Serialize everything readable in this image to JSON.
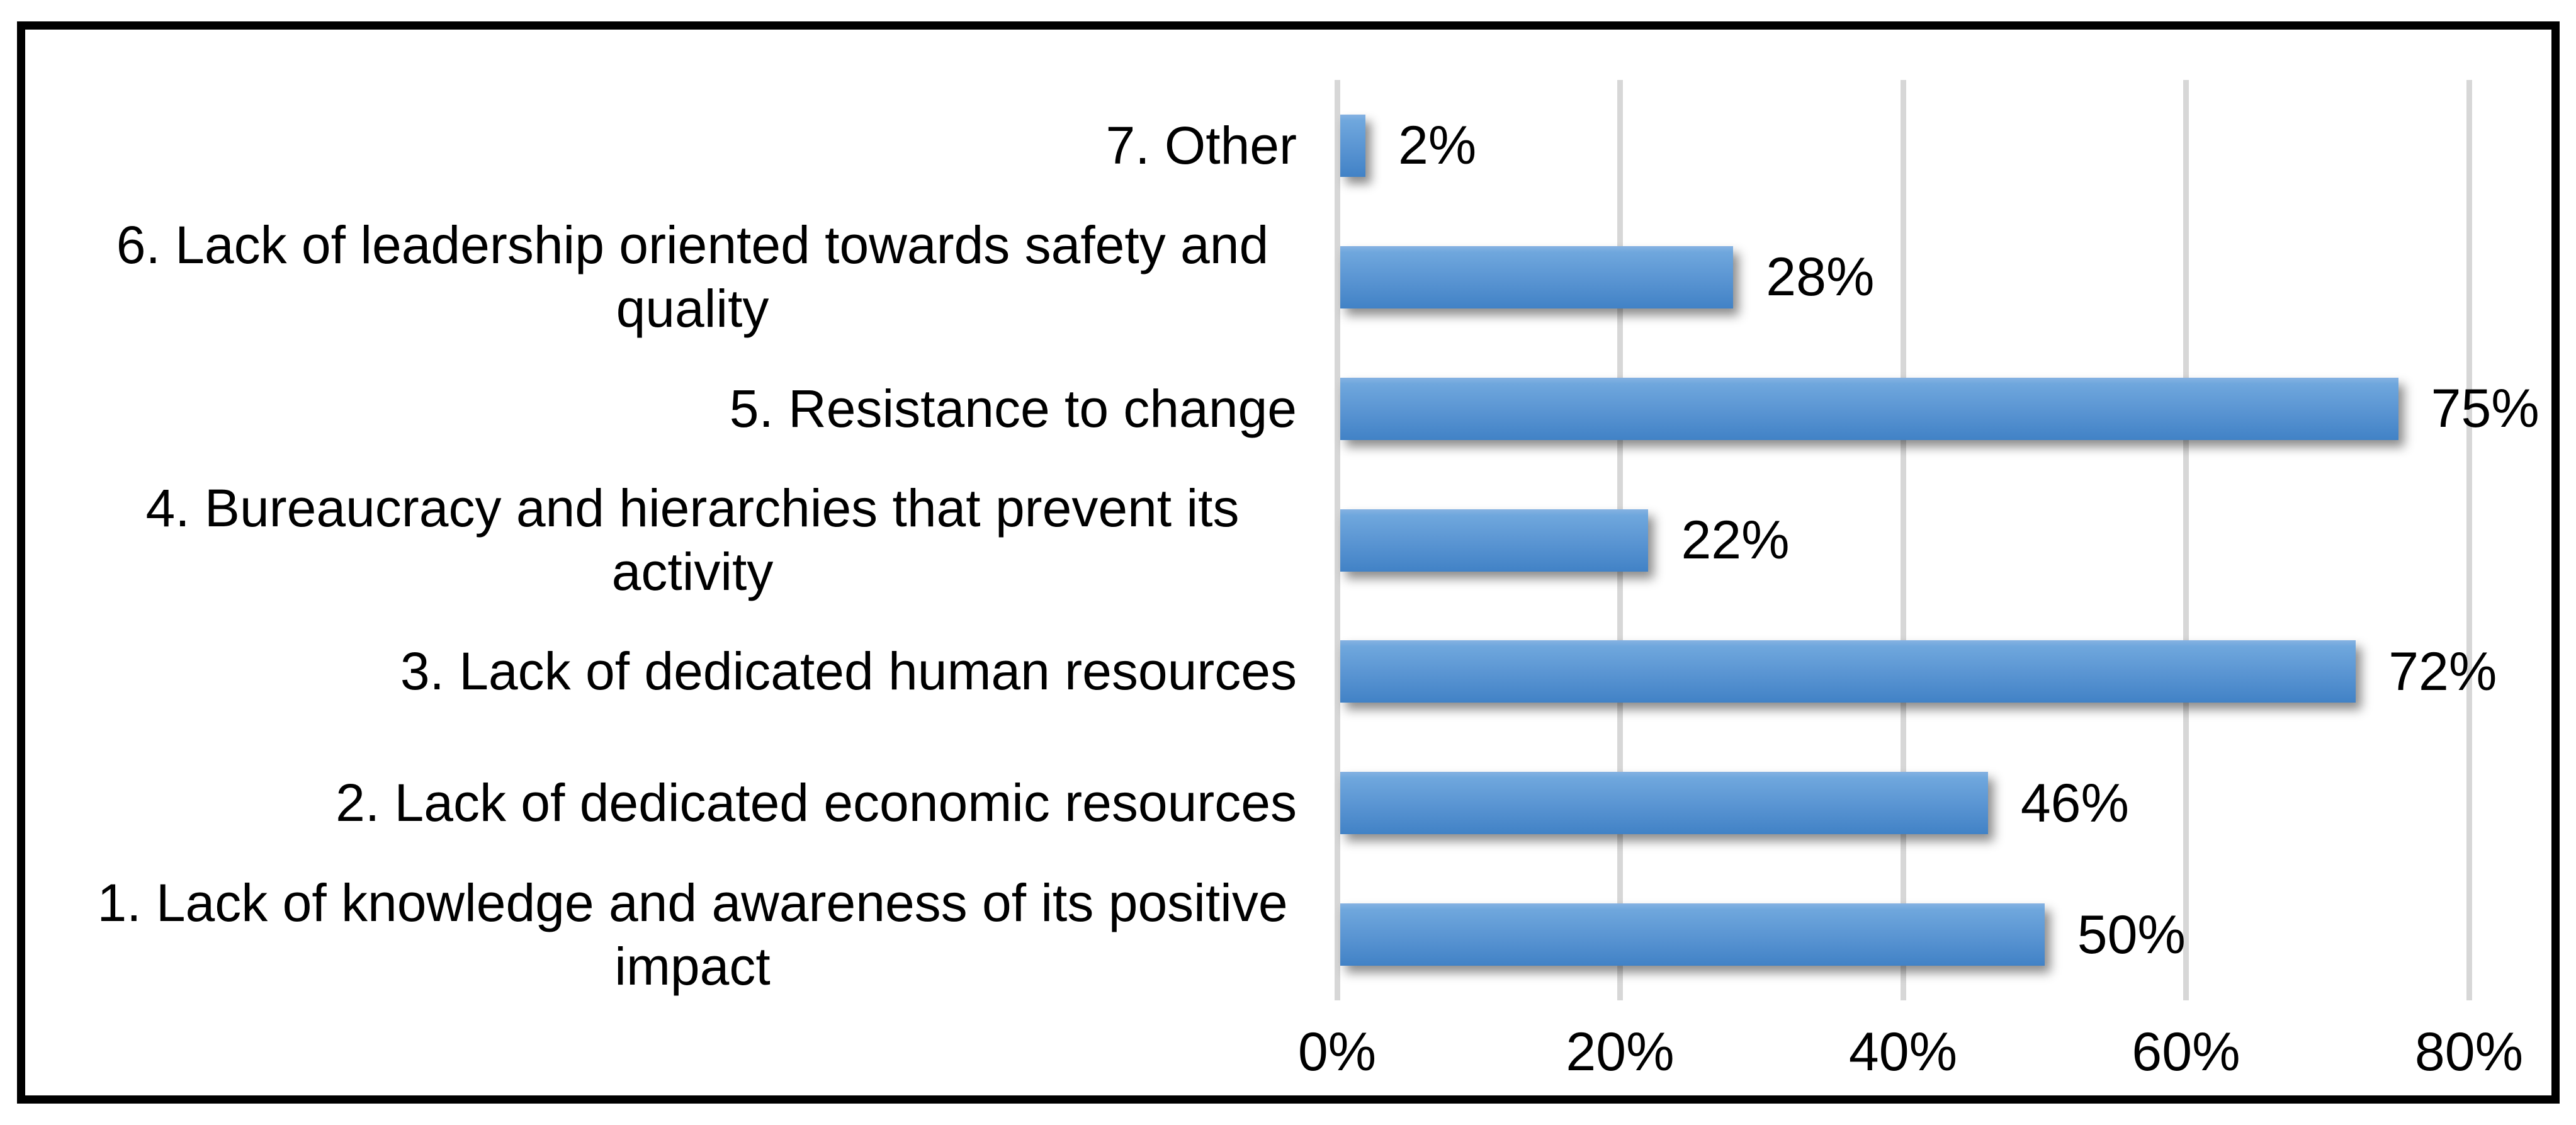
{
  "chart_data": {
    "type": "bar",
    "orientation": "horizontal",
    "categories": [
      "7. Other",
      "6. Lack of leadership oriented towards safety and quality",
      "5. Resistance to change",
      "4. Bureaucracy and hierarchies that prevent its activity",
      "3. Lack of dedicated human resources",
      "2. Lack of dedicated economic resources",
      "1. Lack of knowledge and awareness of its positive impact"
    ],
    "values": [
      2,
      28,
      75,
      22,
      72,
      46,
      50
    ],
    "data_labels": [
      "2%",
      "28%",
      "75%",
      "22%",
      "72%",
      "46%",
      "50%"
    ],
    "x_ticks": [
      "0%",
      "20%",
      "40%",
      "60%",
      "80%"
    ],
    "x_tick_values": [
      0,
      20,
      40,
      60,
      80
    ],
    "xlim": [
      0,
      80
    ],
    "grid": "vertical",
    "legend": "none",
    "title": "",
    "xlabel": "",
    "ylabel": "",
    "colors": {
      "bar_gradient_top": "#6FA7DD",
      "bar_gradient_bottom": "#4182C6",
      "gridline": "#D7D7D7",
      "frame_border": "#000000",
      "background": "#FFFFFF",
      "text": "#000000"
    }
  }
}
